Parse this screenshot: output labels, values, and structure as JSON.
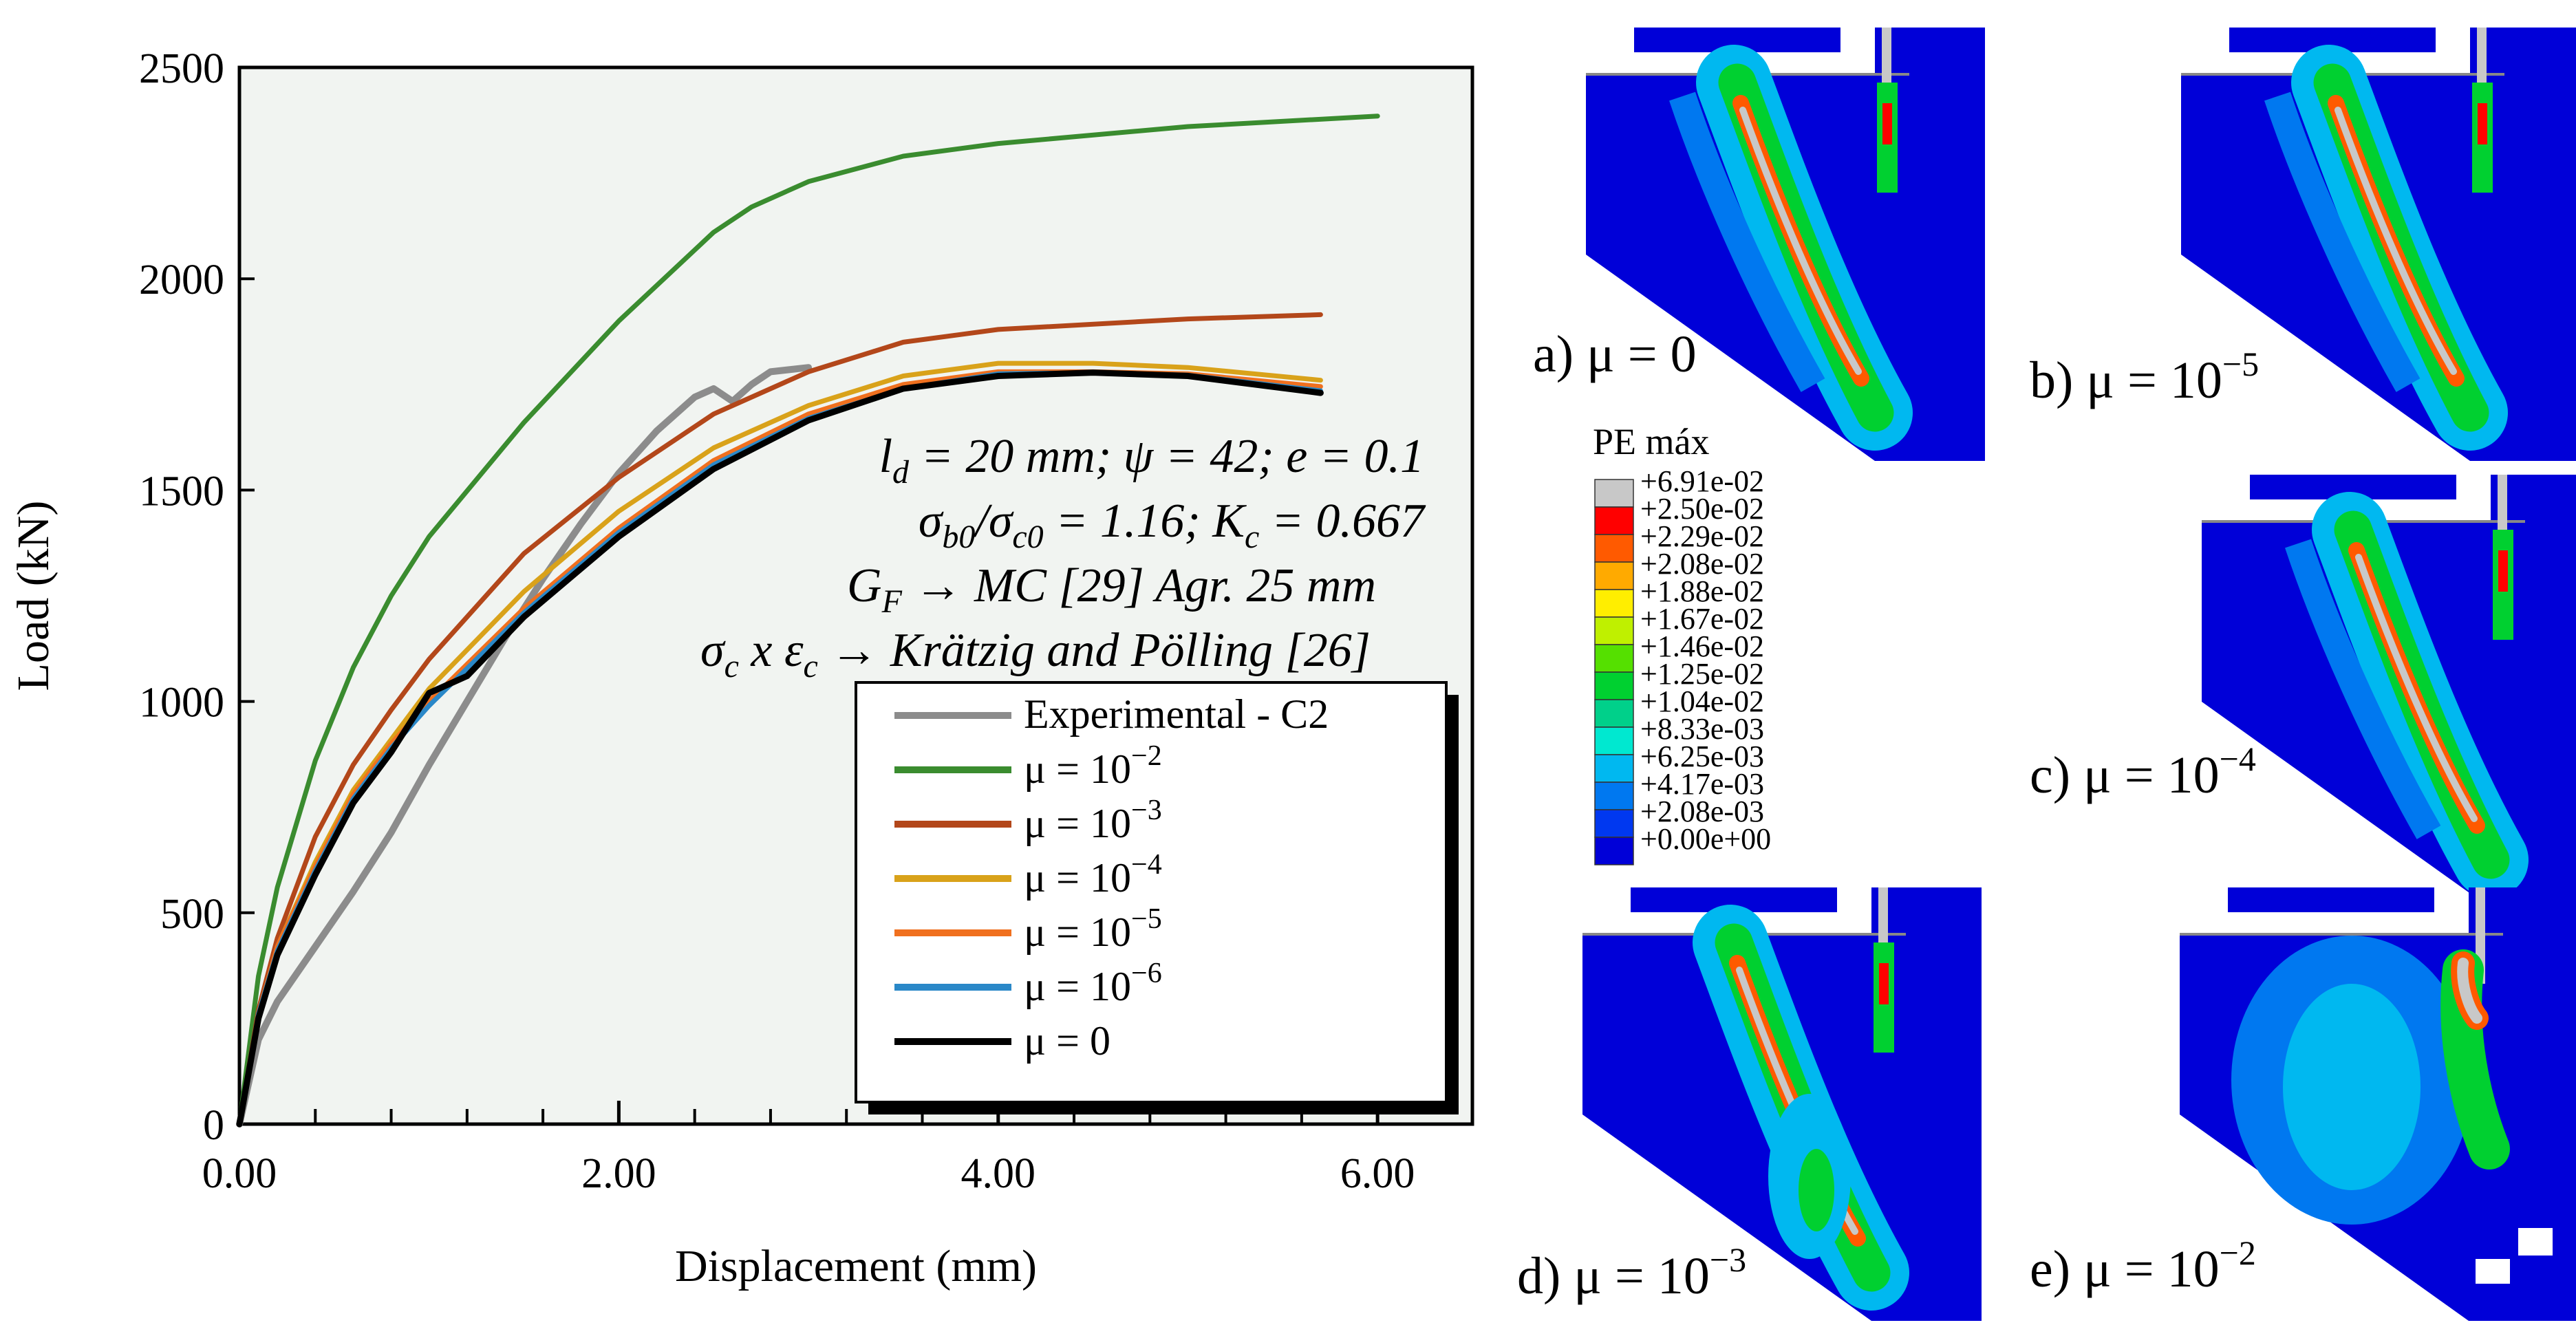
{
  "chart_data": {
    "type": "line",
    "xlabel": "Displacement (mm)",
    "ylabel": "Load (kN)",
    "xlim": [
      0,
      6.5
    ],
    "ylim": [
      0,
      2500
    ],
    "xticks": [
      "0.00",
      "2.00",
      "4.00",
      "6.00"
    ],
    "yticks": [
      "0",
      "500",
      "1000",
      "1500",
      "2000",
      "2500"
    ],
    "legend_position": "lower-right",
    "annotations": {
      "line1": "l_d = 20 mm; ψ = 42; e = 0.1",
      "line2": "σ_b0/σ_c0 = 1.16; K_c = 0.667",
      "line3": "G_F → MC [29] Agr. 25 mm",
      "line4": "σ_c x ε_c → Krätzig and Pölling [26]"
    },
    "series": [
      {
        "name": "Experimental - C2",
        "color": "#8c8c8c",
        "x": [
          0,
          0.1,
          0.2,
          0.4,
          0.6,
          0.8,
          1.0,
          1.2,
          1.4,
          1.6,
          1.8,
          2.0,
          2.2,
          2.4,
          2.5,
          2.6,
          2.7,
          2.8,
          3.0
        ],
        "y": [
          0,
          200,
          290,
          420,
          550,
          690,
          850,
          1000,
          1150,
          1290,
          1420,
          1540,
          1640,
          1720,
          1740,
          1710,
          1750,
          1780,
          1790
        ]
      },
      {
        "name": "μ = 10^-2",
        "color": "#3a8c2f",
        "x": [
          0,
          0.1,
          0.2,
          0.4,
          0.6,
          0.8,
          1.0,
          1.5,
          2.0,
          2.5,
          2.7,
          3.0,
          3.5,
          4.0,
          5.0,
          6.0
        ],
        "y": [
          0,
          350,
          560,
          860,
          1080,
          1250,
          1390,
          1660,
          1900,
          2110,
          2170,
          2230,
          2290,
          2320,
          2360,
          2385
        ]
      },
      {
        "name": "μ = 10^-3",
        "color": "#b3471a",
        "x": [
          0,
          0.1,
          0.2,
          0.4,
          0.6,
          0.8,
          1.0,
          1.5,
          2.0,
          2.5,
          3.0,
          3.5,
          4.0,
          5.0,
          5.7
        ],
        "y": [
          0,
          270,
          440,
          680,
          850,
          980,
          1100,
          1350,
          1530,
          1680,
          1780,
          1850,
          1880,
          1905,
          1915
        ]
      },
      {
        "name": "μ = 10^-4",
        "color": "#d9a21a",
        "x": [
          0,
          0.1,
          0.2,
          0.4,
          0.6,
          0.8,
          1.0,
          1.5,
          2.0,
          2.5,
          3.0,
          3.5,
          4.0,
          4.5,
          5.0,
          5.7
        ],
        "y": [
          0,
          260,
          420,
          620,
          790,
          910,
          1030,
          1260,
          1450,
          1600,
          1700,
          1770,
          1800,
          1800,
          1790,
          1760
        ]
      },
      {
        "name": "μ = 10^-5",
        "color": "#f0701f",
        "x": [
          0,
          0.1,
          0.2,
          0.4,
          0.6,
          0.8,
          1.0,
          1.5,
          2.0,
          2.5,
          3.0,
          3.5,
          4.0,
          4.5,
          5.0,
          5.7
        ],
        "y": [
          0,
          260,
          420,
          610,
          780,
          900,
          1000,
          1220,
          1410,
          1570,
          1680,
          1750,
          1780,
          1780,
          1775,
          1745
        ]
      },
      {
        "name": "μ = 10^-6",
        "color": "#2a88c8",
        "x": [
          0,
          0.1,
          0.2,
          0.4,
          0.6,
          0.8,
          1.0,
          1.5,
          2.0,
          2.5,
          3.0,
          3.5,
          4.0,
          4.5,
          5.0,
          5.7
        ],
        "y": [
          0,
          260,
          410,
          600,
          770,
          890,
          990,
          1210,
          1400,
          1560,
          1670,
          1740,
          1775,
          1778,
          1772,
          1735
        ]
      },
      {
        "name": "μ = 0",
        "color": "#000000",
        "x": [
          0,
          0.1,
          0.2,
          0.4,
          0.6,
          0.8,
          1.0,
          1.1,
          1.2,
          1.5,
          2.0,
          2.5,
          3.0,
          3.5,
          4.0,
          4.5,
          5.0,
          5.7
        ],
        "y": [
          0,
          250,
          400,
          590,
          760,
          880,
          1020,
          1040,
          1060,
          1200,
          1390,
          1550,
          1665,
          1740,
          1770,
          1778,
          1770,
          1730
        ]
      }
    ]
  },
  "legend": {
    "exp": "Experimental - C2",
    "m2": "μ = 10",
    "m2e": "−2",
    "m3": "μ = 10",
    "m3e": "−3",
    "m4": "μ = 10",
    "m4e": "−4",
    "m5": "μ = 10",
    "m5e": "−5",
    "m6": "μ = 10",
    "m6e": "−6",
    "m0": "μ = 0"
  },
  "panels": {
    "a": "a) μ = 0",
    "b": "b) μ = 10",
    "b_exp": "−5",
    "c": "c) μ = 10",
    "c_exp": "−4",
    "d": "d) μ = 10",
    "d_exp": "−3",
    "e": "e) μ = 10",
    "e_exp": "−2"
  },
  "contour_legend": {
    "title": "PE máx",
    "values": [
      "+6.91e-02",
      "+2.50e-02",
      "+2.29e-02",
      "+2.08e-02",
      "+1.88e-02",
      "+1.67e-02",
      "+1.46e-02",
      "+1.25e-02",
      "+1.04e-02",
      "+8.33e-03",
      "+6.25e-03",
      "+4.17e-03",
      "+2.08e-03",
      "+0.00e+00"
    ],
    "colors": [
      "#c8c8c8",
      "#ff0000",
      "#ff5a00",
      "#ffaa00",
      "#ffee00",
      "#bff000",
      "#55e000",
      "#00d030",
      "#00d08a",
      "#00e8d0",
      "#00b8f0",
      "#0078f0",
      "#0038f0",
      "#0000d8"
    ]
  }
}
